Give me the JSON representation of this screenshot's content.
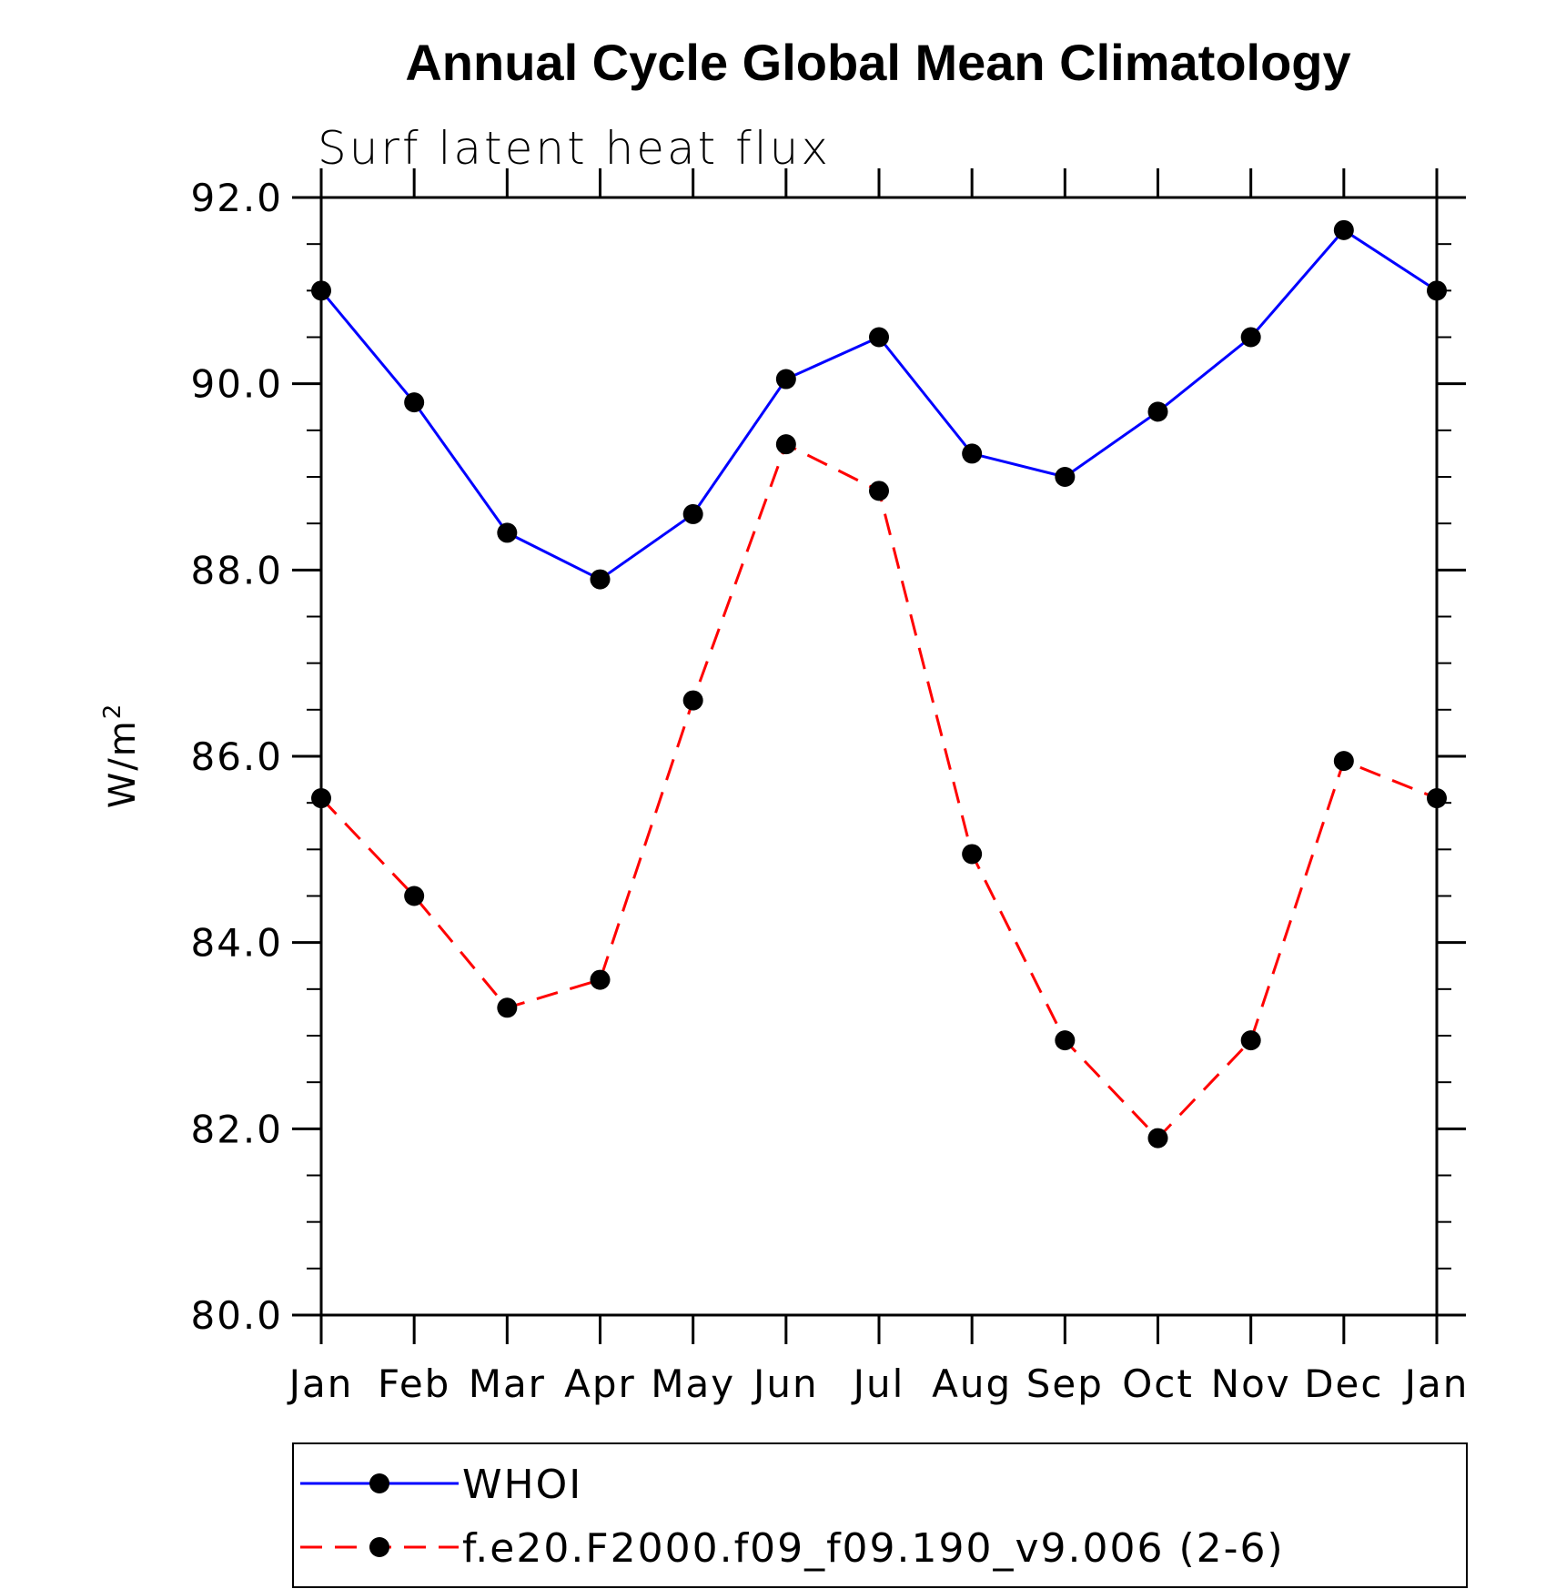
{
  "chart_data": {
    "type": "line",
    "title": "Annual Cycle Global Mean Climatology",
    "subtitle": "Surf latent heat flux",
    "ylabel_main": "W/m",
    "ylabel_sup": "2",
    "xlabel": "",
    "categories": [
      "Jan",
      "Feb",
      "Mar",
      "Apr",
      "May",
      "Jun",
      "Jul",
      "Aug",
      "Sep",
      "Oct",
      "Nov",
      "Dec",
      "Jan"
    ],
    "ylim": [
      80.0,
      92.0
    ],
    "yticks": [
      "80.0",
      "82.0",
      "84.0",
      "86.0",
      "88.0",
      "90.0",
      "92.0"
    ],
    "grid": false,
    "legend_position": "bottom",
    "series": [
      {
        "name": "WHOI",
        "color": "#0000ff",
        "dash": "solid",
        "values": [
          91.0,
          89.8,
          88.4,
          87.9,
          88.6,
          90.05,
          90.5,
          89.25,
          89.0,
          89.7,
          90.5,
          91.65,
          91.0
        ]
      },
      {
        "name": "f.e20.F2000.f09_f09.190_v9.006 (2-6)",
        "color": "#ff0000",
        "dash": "dashed",
        "values": [
          85.55,
          84.5,
          83.3,
          83.6,
          86.6,
          89.35,
          88.85,
          84.95,
          82.95,
          81.9,
          82.95,
          85.95,
          85.55
        ]
      }
    ]
  }
}
